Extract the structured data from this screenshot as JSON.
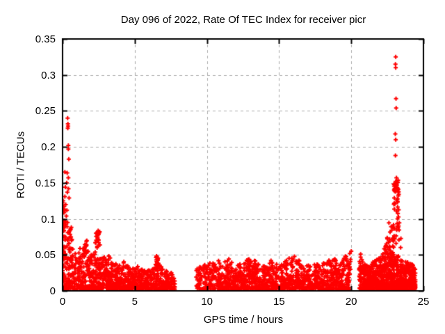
{
  "chart_data": {
    "type": "scatter",
    "title": "Day 096 of 2022, Rate Of TEC Index for receiver picr",
    "xlabel": "GPS time / hours",
    "ylabel": "ROTI / TECUs",
    "xlim": [
      0,
      25
    ],
    "ylim": [
      0,
      0.35
    ],
    "x_ticks": [
      0,
      5,
      10,
      15,
      20,
      25
    ],
    "x_tick_labels": [
      "0",
      "5",
      "10",
      "15",
      "20",
      "25"
    ],
    "y_ticks": [
      0,
      0.05,
      0.1,
      0.15,
      0.2,
      0.25,
      0.3,
      0.35
    ],
    "y_tick_labels": [
      "0",
      "0.05",
      "0.1",
      "0.15",
      "0.2",
      "0.25",
      "0.3",
      "0.35"
    ],
    "grid": {
      "on": true,
      "style": "dashed",
      "color": "#aaaaaa",
      "both_axes": true
    },
    "legend": "none",
    "marker": {
      "glyph": "plus",
      "color": "#ff0000",
      "size": 7,
      "stroke": 2
    },
    "border_color": "#000000",
    "text_color": "#000000",
    "background_color": "#ffffff",
    "description": "Dense low-ROTI band (~0.005-0.05 TECU) from 0-7.8h, 9.3-20h and 20.6-24.4h with data gaps 7.8-9.3h and 20-20.6h; large spikes near 0h (up to 0.24) and near 23.1h (up to 0.325)",
    "bands": [
      {
        "name": "morning-band",
        "t": [
          0.02,
          7.8
        ],
        "count": 950,
        "base": 0.002,
        "envelope": [
          [
            0,
            0.05
          ],
          [
            0.5,
            0.048
          ],
          [
            1,
            0.056
          ],
          [
            1.5,
            0.065
          ],
          [
            1.9,
            0.048
          ],
          [
            2.2,
            0.058
          ],
          [
            2.7,
            0.045
          ],
          [
            3.2,
            0.05
          ],
          [
            3.6,
            0.038
          ],
          [
            4.2,
            0.042
          ],
          [
            4.7,
            0.032
          ],
          [
            5.2,
            0.034
          ],
          [
            5.7,
            0.028
          ],
          [
            6.2,
            0.03
          ],
          [
            6.5,
            0.048
          ],
          [
            6.9,
            0.032
          ],
          [
            7.4,
            0.026
          ],
          [
            7.8,
            0.024
          ]
        ]
      },
      {
        "name": "midday-band",
        "t": [
          9.25,
          19.95
        ],
        "count": 1150,
        "base": 0.002,
        "envelope": [
          [
            9.3,
            0.032
          ],
          [
            9.7,
            0.042
          ],
          [
            10.1,
            0.035
          ],
          [
            10.5,
            0.05
          ],
          [
            11,
            0.04
          ],
          [
            11.5,
            0.046
          ],
          [
            12,
            0.034
          ],
          [
            12.5,
            0.04
          ],
          [
            13,
            0.047
          ],
          [
            13.5,
            0.04
          ],
          [
            14,
            0.034
          ],
          [
            14.5,
            0.044
          ],
          [
            15,
            0.036
          ],
          [
            15.5,
            0.042
          ],
          [
            15.9,
            0.052
          ],
          [
            16.3,
            0.044
          ],
          [
            16.8,
            0.034
          ],
          [
            17.3,
            0.04
          ],
          [
            17.8,
            0.036
          ],
          [
            18.3,
            0.042
          ],
          [
            18.8,
            0.045
          ],
          [
            19.3,
            0.04
          ],
          [
            19.7,
            0.052
          ],
          [
            19.95,
            0.045
          ]
        ]
      },
      {
        "name": "evening-band",
        "t": [
          20.55,
          24.45
        ],
        "count": 820,
        "base": 0.002,
        "envelope": [
          [
            20.6,
            0.05
          ],
          [
            20.9,
            0.038
          ],
          [
            21.2,
            0.034
          ],
          [
            21.6,
            0.042
          ],
          [
            22,
            0.046
          ],
          [
            22.3,
            0.06
          ],
          [
            22.5,
            0.075
          ],
          [
            22.7,
            0.058
          ],
          [
            23,
            0.05
          ],
          [
            23.3,
            0.048
          ],
          [
            23.6,
            0.04
          ],
          [
            24,
            0.042
          ],
          [
            24.45,
            0.032
          ]
        ]
      }
    ],
    "clusters": [
      {
        "name": "hour0-column",
        "t": [
          0.0,
          0.12
        ],
        "v": [
          0.01,
          0.128
        ],
        "count": 45
      },
      {
        "name": "hour0-spray",
        "t": [
          0.1,
          0.7
        ],
        "v": [
          0.05,
          0.1
        ],
        "count": 30
      },
      {
        "name": "h1.6-bump",
        "t": [
          1.45,
          1.85
        ],
        "v": [
          0.05,
          0.072
        ],
        "count": 16
      },
      {
        "name": "h2.4-bump",
        "t": [
          2.25,
          2.6
        ],
        "v": [
          0.06,
          0.085
        ],
        "count": 22
      },
      {
        "name": "h6.6-bump",
        "t": [
          6.45,
          6.75
        ],
        "v": [
          0.035,
          0.05
        ],
        "count": 8
      },
      {
        "name": "pre-midnight-rise",
        "t": [
          22.6,
          23.45
        ],
        "v": [
          0.05,
          0.1
        ],
        "count": 35
      },
      {
        "name": "midnight-spike-column",
        "t": [
          22.95,
          23.3
        ],
        "v": [
          0.1,
          0.155
        ],
        "count": 40
      }
    ],
    "outliers": [
      [
        0.35,
        0.24
      ],
      [
        0.37,
        0.232
      ],
      [
        0.38,
        0.229
      ],
      [
        0.36,
        0.226
      ],
      [
        0.4,
        0.202
      ],
      [
        0.4,
        0.197
      ],
      [
        0.43,
        0.183
      ],
      [
        0.16,
        0.165
      ],
      [
        0.32,
        0.164
      ],
      [
        0.4,
        0.157
      ],
      [
        0.29,
        0.15
      ],
      [
        0.19,
        0.144
      ],
      [
        0.41,
        0.142
      ],
      [
        0.33,
        0.137
      ],
      [
        0.16,
        0.131
      ],
      [
        0.45,
        0.129
      ],
      [
        0.22,
        0.12
      ],
      [
        0.3,
        0.112
      ],
      [
        0.26,
        0.104
      ],
      [
        0.55,
        0.085
      ],
      [
        0.62,
        0.07
      ],
      [
        0.7,
        0.058
      ],
      [
        23.08,
        0.325
      ],
      [
        23.06,
        0.315
      ],
      [
        23.08,
        0.31
      ],
      [
        23.1,
        0.267
      ],
      [
        23.11,
        0.254
      ],
      [
        23.05,
        0.218
      ],
      [
        23.08,
        0.21
      ],
      [
        23.06,
        0.188
      ],
      [
        23.13,
        0.157
      ],
      [
        19.9,
        0.052
      ],
      [
        20.0,
        0.055
      ],
      [
        20.65,
        0.051
      ]
    ]
  }
}
